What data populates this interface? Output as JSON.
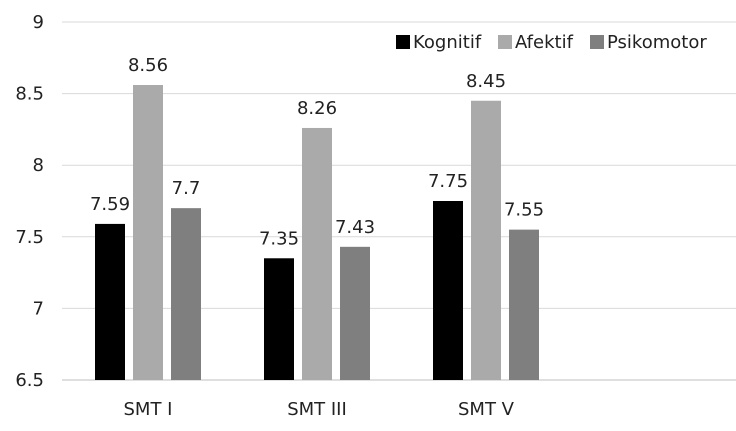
{
  "chart_data": {
    "type": "bar",
    "title": "",
    "xlabel": "",
    "ylabel": "",
    "categories": [
      "SMT I",
      "SMT III",
      "SMT V"
    ],
    "ylim": [
      6.5,
      9
    ],
    "yticks": [
      6.5,
      7,
      7.5,
      8,
      8.5,
      9
    ],
    "y_tick_labels": [
      "6.5",
      "7",
      "7.5",
      "8",
      "8.5",
      "9"
    ],
    "grid": true,
    "legend_position": "top-right",
    "series": [
      {
        "name": "Kognitif",
        "color": "#000000",
        "values": [
          7.59,
          7.35,
          7.75
        ],
        "labels": [
          "7.59",
          "7.35",
          "7.75"
        ]
      },
      {
        "name": "Afektif",
        "color": "#aaaaaa",
        "values": [
          8.56,
          8.26,
          8.45
        ],
        "labels": [
          "8.56",
          "8.26",
          "8.45"
        ]
      },
      {
        "name": "Psikomotor",
        "color": "#7f7f7f",
        "values": [
          7.7,
          7.43,
          7.55
        ],
        "labels": [
          "7.7",
          "7.43",
          "7.55"
        ]
      }
    ]
  }
}
